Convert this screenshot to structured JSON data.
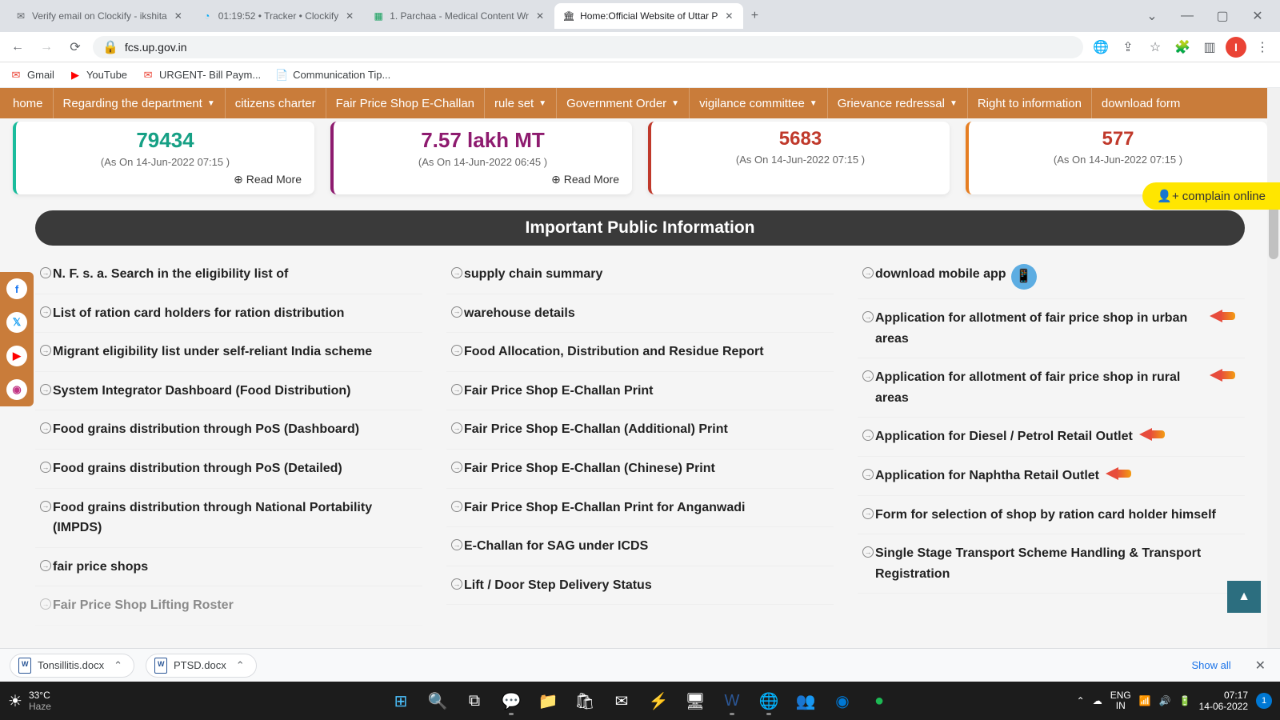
{
  "browser": {
    "tabs": [
      {
        "title": "Verify email on Clockify - ikshita",
        "favicon": "M"
      },
      {
        "title": "01:19:52 • Tracker • Clockify",
        "favicon": "⏱"
      },
      {
        "title": "1. Parchaa - Medical Content Wr",
        "favicon": "▦"
      },
      {
        "title": "Home:Official Website of Uttar P",
        "favicon": "🏛"
      }
    ],
    "url": "fcs.up.gov.in",
    "profile_initial": "I",
    "bookmarks": [
      {
        "label": "Gmail",
        "icon": "M"
      },
      {
        "label": "YouTube",
        "icon": "▶"
      },
      {
        "label": "URGENT- Bill Paym...",
        "icon": "M"
      },
      {
        "label": "Communication Tip...",
        "icon": "📄"
      }
    ]
  },
  "nav": [
    {
      "label": "home",
      "dropdown": false
    },
    {
      "label": "Regarding the department",
      "dropdown": true
    },
    {
      "label": "citizens charter",
      "dropdown": false
    },
    {
      "label": "Fair Price Shop E-Challan",
      "dropdown": false
    },
    {
      "label": "rule set",
      "dropdown": true
    },
    {
      "label": "Government Order",
      "dropdown": true
    },
    {
      "label": "vigilance committee",
      "dropdown": true
    },
    {
      "label": "Grievance redressal",
      "dropdown": true
    },
    {
      "label": "Right to information",
      "dropdown": false
    },
    {
      "label": "download form",
      "dropdown": false
    }
  ],
  "stats": [
    {
      "value": "79434",
      "date": "(As On 14-Jun-2022 07:15 )",
      "readmore": "Read More"
    },
    {
      "value": "7.57 lakh MT",
      "date": "(As On 14-Jun-2022 06:45 )",
      "readmore": "Read More"
    },
    {
      "value": "5683",
      "date": "(As On 14-Jun-2022 07:15 )"
    },
    {
      "value": "577",
      "date": "(As On 14-Jun-2022 07:15 )"
    }
  ],
  "complain_label": "complain online",
  "section_title": "Important Public Information",
  "links": {
    "col1": [
      "N. F. s. a. Search in the eligibility list of",
      "List of ration card holders for ration distribution",
      "Migrant eligibility list under self-reliant India scheme",
      "System Integrator Dashboard (Food Distribution)",
      "Food grains distribution through PoS (Dashboard)",
      "Food grains distribution through PoS (Detailed)",
      "Food grains distribution through National Portability (IMPDS)",
      "fair price shops",
      "Fair Price Shop Lifting Roster"
    ],
    "col2": [
      "supply chain summary",
      "warehouse details",
      "Food Allocation, Distribution and Residue Report",
      "Fair Price Shop E-Challan Print",
      "Fair Price Shop E-Challan (Additional) Print",
      "Fair Price Shop E-Challan (Chinese) Print",
      "Fair Price Shop E-Challan Print for Anganwadi",
      "E-Challan for SAG under ICDS",
      "Lift / Door Step Delivery Status"
    ],
    "col3": [
      {
        "text": "download mobile app",
        "badge": "app"
      },
      {
        "text": "Application for allotment of fair price shop in urban areas",
        "badge": "pointer"
      },
      {
        "text": "Application for allotment of fair price shop in rural areas",
        "badge": "pointer"
      },
      {
        "text": "Application for Diesel / Petrol Retail Outlet",
        "badge": "pointer"
      },
      {
        "text": "Application for Naphtha Retail Outlet",
        "badge": "pointer"
      },
      {
        "text": "Form for selection of shop by ration card holder himself"
      },
      {
        "text": "Single Stage Transport Scheme Handling & Transport Registration"
      }
    ]
  },
  "downloads": [
    {
      "name": "Tonsillitis.docx"
    },
    {
      "name": "PTSD.docx"
    }
  ],
  "downloads_showall": "Show all",
  "taskbar": {
    "temp": "33°C",
    "weather": "Haze",
    "lang1": "ENG",
    "lang2": "IN",
    "time": "07:17",
    "date": "14-06-2022",
    "notif": "1"
  }
}
